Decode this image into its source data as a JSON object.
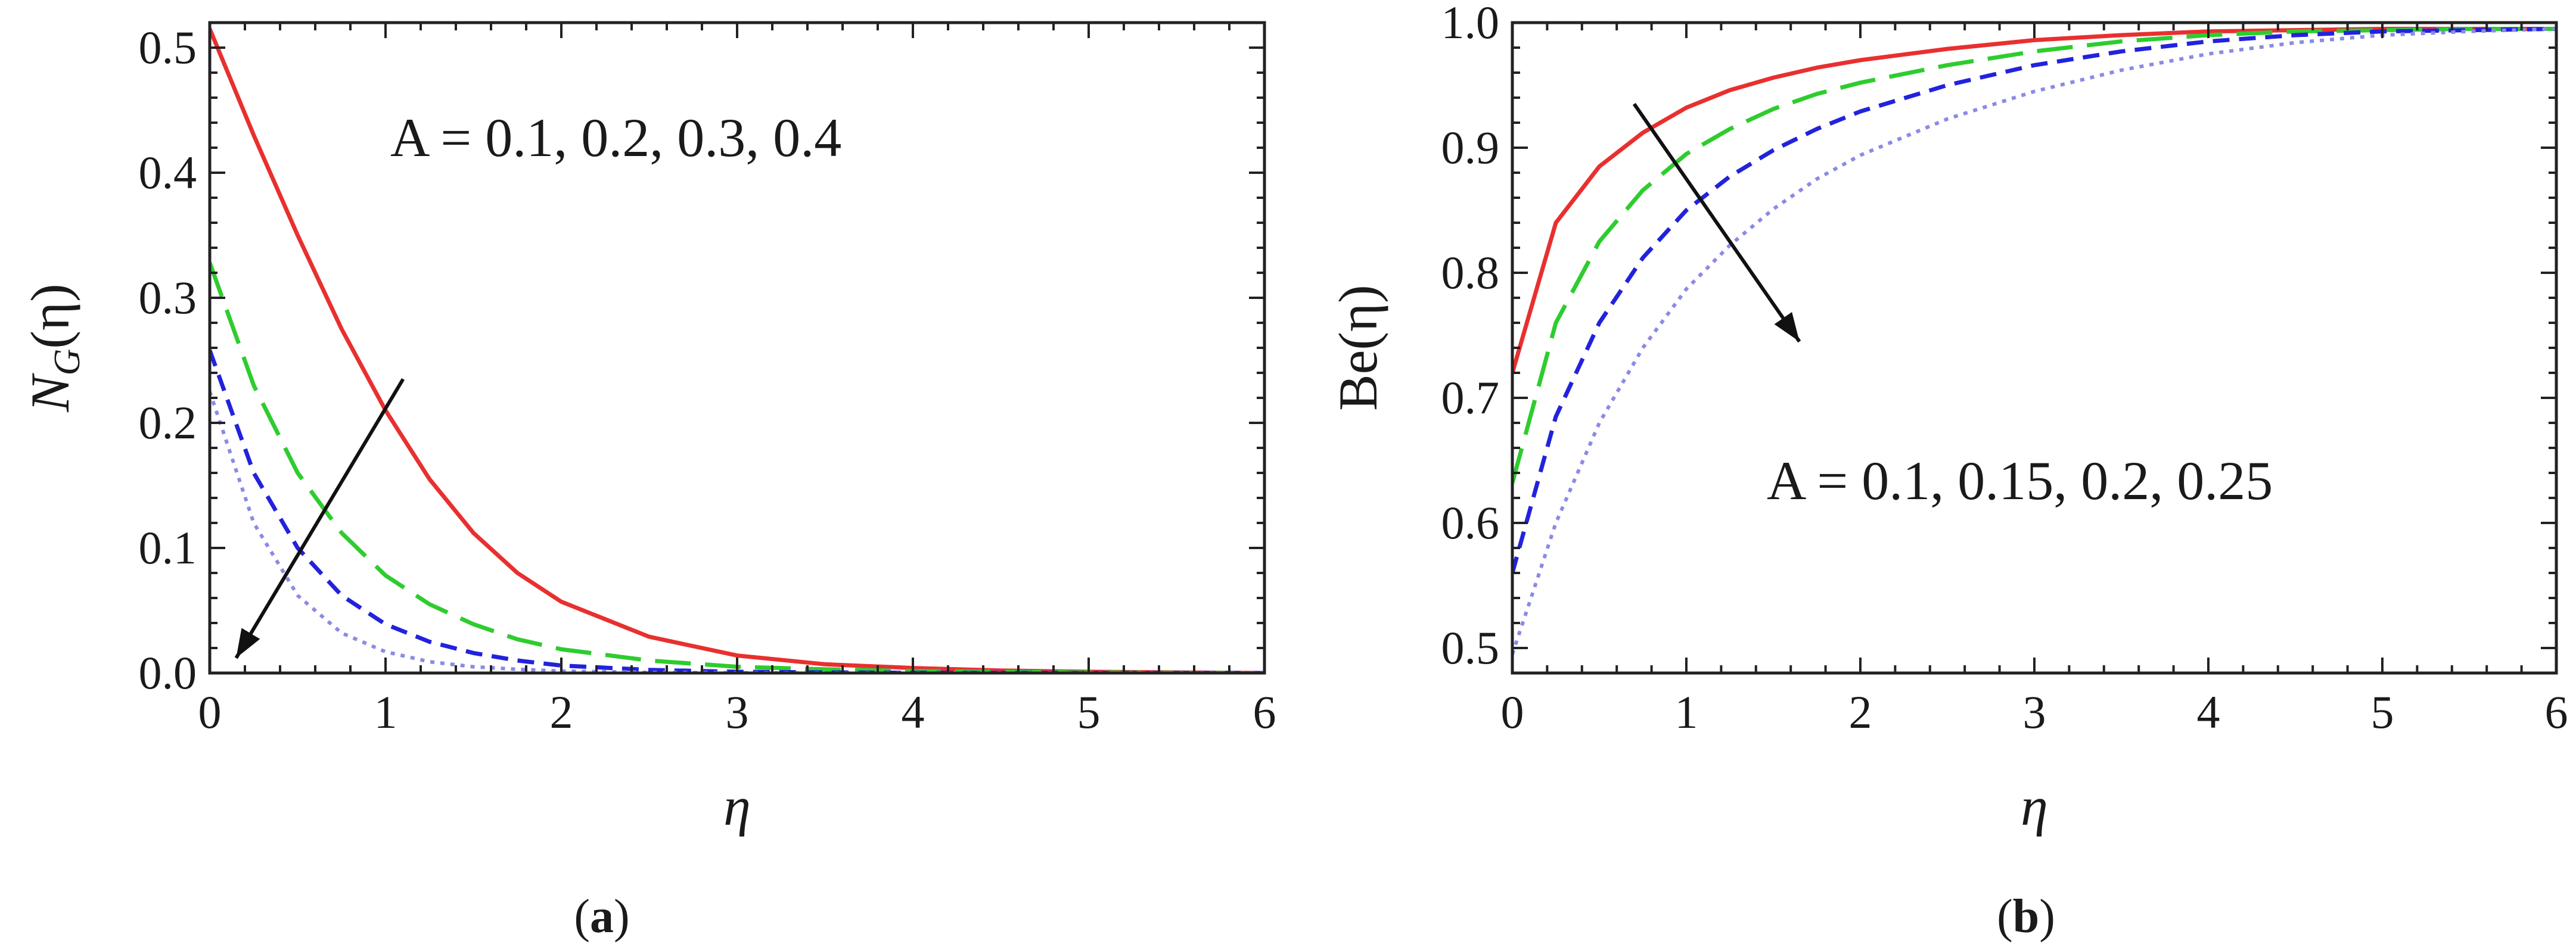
{
  "figure": {
    "panels": [
      "a",
      "b"
    ]
  },
  "chart_data": [
    {
      "type": "line",
      "panel_caption": "(a)",
      "panel_letter": "a",
      "ylabel": "N_G(η)",
      "ylabel_main": "N",
      "ylabel_sub": "G",
      "ylabel_rest": "(η)",
      "xlabel": "η",
      "xlim": [
        0,
        6
      ],
      "ylim": [
        0,
        0.52
      ],
      "xticks": [
        0,
        1,
        2,
        3,
        4,
        5,
        6
      ],
      "yticks": [
        0.0,
        0.1,
        0.2,
        0.3,
        0.4,
        0.5
      ],
      "ytick_labels": [
        "0.0",
        "0.1",
        "0.2",
        "0.3",
        "0.4",
        "0.5"
      ],
      "annotation": "A = 0.1, 0.2, 0.3, 0.4",
      "arrow": {
        "from": [
          1.1,
          0.235
        ],
        "to": [
          0.15,
          0.012
        ]
      },
      "legend": "none",
      "grid": false,
      "x": [
        0,
        0.25,
        0.5,
        0.75,
        1.0,
        1.25,
        1.5,
        1.75,
        2.0,
        2.5,
        3.0,
        3.5,
        4.0,
        4.5,
        5.0,
        5.5,
        6.0
      ],
      "series": [
        {
          "values": [
            0.515,
            0.43,
            0.35,
            0.275,
            0.21,
            0.155,
            0.112,
            0.08,
            0.057,
            0.029,
            0.014,
            0.007,
            0.004,
            0.002,
            0.001,
            0.0005,
            0.0
          ],
          "color": "#e8302f",
          "dash": "solid"
        },
        {
          "values": [
            0.328,
            0.23,
            0.16,
            0.112,
            0.078,
            0.055,
            0.039,
            0.027,
            0.019,
            0.01,
            0.005,
            0.003,
            0.0015,
            0.001,
            0.0005,
            0.0002,
            0.0
          ],
          "color": "#2ecc2e",
          "dash": "long"
        },
        {
          "values": [
            0.258,
            0.16,
            0.1,
            0.062,
            0.039,
            0.025,
            0.016,
            0.01,
            0.006,
            0.0025,
            0.001,
            0.0005,
            0.0002,
            0.0001,
            0.0,
            0.0,
            0.0
          ],
          "color": "#2222dd",
          "dash": "medium"
        },
        {
          "values": [
            0.225,
            0.12,
            0.062,
            0.032,
            0.017,
            0.009,
            0.005,
            0.003,
            0.0015,
            0.0005,
            0.0002,
            0.0,
            0.0,
            0.0,
            0.0,
            0.0,
            0.0
          ],
          "color": "#8a8ae6",
          "dash": "dotted"
        }
      ]
    },
    {
      "type": "line",
      "panel_caption": "(b)",
      "panel_letter": "b",
      "ylabel": "Be(η)",
      "xlabel": "η",
      "xlim": [
        0,
        6
      ],
      "ylim": [
        0.48,
        1.0
      ],
      "xticks": [
        0,
        1,
        2,
        3,
        4,
        5,
        6
      ],
      "yticks": [
        0.5,
        0.6,
        0.7,
        0.8,
        0.9,
        1.0
      ],
      "ytick_labels": [
        "0.5",
        "0.6",
        "0.7",
        "0.8",
        "0.9",
        "1.0"
      ],
      "annotation": "A = 0.1, 0.15, 0.2, 0.25",
      "arrow": {
        "from": [
          0.7,
          0.935
        ],
        "to": [
          1.65,
          0.745
        ]
      },
      "legend": "none",
      "grid": false,
      "x": [
        0,
        0.25,
        0.5,
        0.75,
        1.0,
        1.25,
        1.5,
        1.75,
        2.0,
        2.5,
        3.0,
        3.5,
        4.0,
        4.5,
        5.0,
        5.5,
        6.0
      ],
      "series": [
        {
          "values": [
            0.72,
            0.84,
            0.885,
            0.912,
            0.932,
            0.946,
            0.956,
            0.964,
            0.97,
            0.979,
            0.986,
            0.99,
            0.993,
            0.994,
            0.995,
            0.995,
            0.995
          ],
          "color": "#e8302f",
          "dash": "solid"
        },
        {
          "values": [
            0.632,
            0.76,
            0.825,
            0.866,
            0.895,
            0.915,
            0.931,
            0.943,
            0.952,
            0.966,
            0.977,
            0.985,
            0.99,
            0.993,
            0.994,
            0.995,
            0.995
          ],
          "color": "#2ecc2e",
          "dash": "long"
        },
        {
          "values": [
            0.56,
            0.685,
            0.76,
            0.812,
            0.85,
            0.877,
            0.898,
            0.915,
            0.929,
            0.95,
            0.966,
            0.977,
            0.985,
            0.99,
            0.993,
            0.994,
            0.995
          ],
          "color": "#2222dd",
          "dash": "medium"
        },
        {
          "values": [
            0.495,
            0.6,
            0.68,
            0.74,
            0.787,
            0.822,
            0.851,
            0.875,
            0.894,
            0.923,
            0.945,
            0.962,
            0.975,
            0.984,
            0.99,
            0.993,
            0.995
          ],
          "color": "#8a8ae6",
          "dash": "dotted"
        }
      ]
    }
  ]
}
